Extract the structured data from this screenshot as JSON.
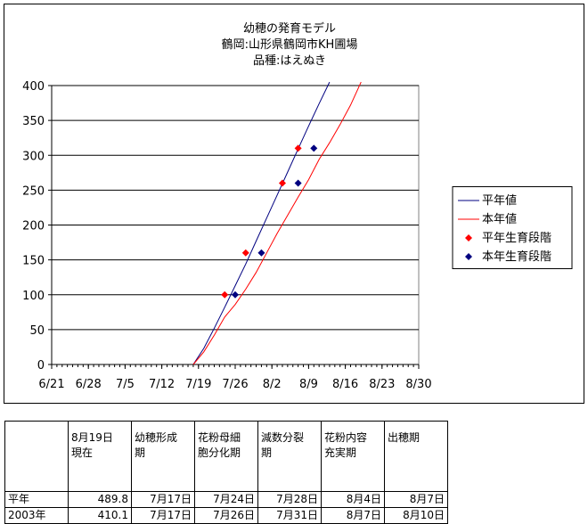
{
  "chart_data": {
    "type": "line",
    "title": [
      "幼穂の発育モデル",
      "鶴岡:山形県鶴岡市KH圃場",
      "品種:はえぬき"
    ],
    "xlabel": "",
    "ylabel": "",
    "x_ticks": [
      "6/21",
      "6/28",
      "7/5",
      "7/12",
      "7/19",
      "7/26",
      "8/2",
      "8/9",
      "8/16",
      "8/23",
      "8/30"
    ],
    "xlim_days_from_6_21": [
      0,
      70
    ],
    "ylim": [
      0,
      400
    ],
    "y_ticks": [
      0,
      50,
      100,
      150,
      200,
      250,
      300,
      350,
      400
    ],
    "grid": "horizontal",
    "legend_position": "right",
    "series": [
      {
        "name": "平年値",
        "type": "line",
        "color": "#000080",
        "x": [
          "7/18",
          "7/20",
          "7/22",
          "7/24",
          "7/26",
          "7/28",
          "7/30",
          "8/1",
          "8/3",
          "8/5",
          "8/7",
          "8/9",
          "8/11",
          "8/13"
        ],
        "values": [
          0,
          23,
          52,
          82,
          113,
          144,
          177,
          210,
          243,
          276,
          309,
          342,
          374,
          405
        ]
      },
      {
        "name": "本年値",
        "type": "line",
        "color": "#ff0000",
        "x": [
          "7/18",
          "7/20",
          "7/22",
          "7/24",
          "7/26",
          "7/28",
          "7/30",
          "8/1",
          "8/3",
          "8/5",
          "8/7",
          "8/9",
          "8/11",
          "8/13",
          "8/15",
          "8/17",
          "8/19"
        ],
        "values": [
          0,
          18,
          42,
          68,
          86,
          108,
          132,
          160,
          188,
          214,
          240,
          265,
          294,
          318,
          344,
          372,
          405
        ]
      },
      {
        "name": "平年生育段階",
        "type": "scatter",
        "marker": "diamond",
        "color": "#ff0000",
        "x": [
          "7/24",
          "7/28",
          "8/4",
          "8/7"
        ],
        "values": [
          100,
          160,
          260,
          310
        ]
      },
      {
        "name": "本年生育段階",
        "type": "scatter",
        "marker": "diamond",
        "color": "#000080",
        "x": [
          "7/26",
          "7/31",
          "8/7",
          "8/10"
        ],
        "values": [
          100,
          160,
          260,
          310
        ]
      }
    ]
  },
  "table": {
    "headers": [
      "",
      "8月19日\n現在",
      "幼穂形成\n期",
      "花粉母細\n胞分化期",
      "減数分裂\n期",
      "花粉内容\n充実期",
      "出穂期"
    ],
    "rows": [
      [
        "平年",
        "489.8",
        "7月17日",
        "7月24日",
        "7月28日",
        "8月4日",
        "8月7日"
      ],
      [
        "2003年",
        "410.1",
        "7月17日",
        "7月26日",
        "7月31日",
        "8月7日",
        "8月10日"
      ]
    ]
  }
}
